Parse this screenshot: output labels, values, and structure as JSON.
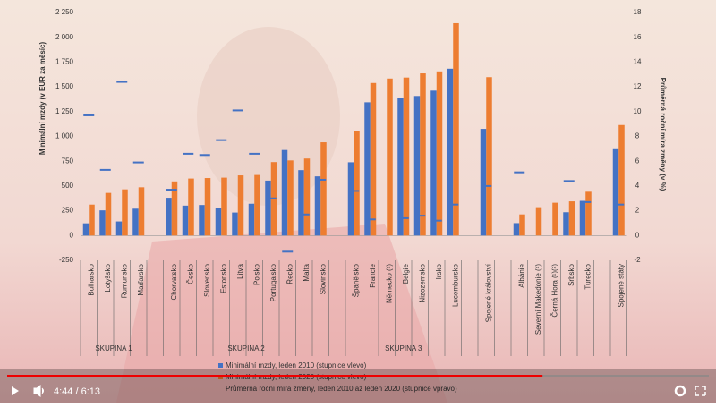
{
  "chart_data": {
    "type": "bar",
    "ylabel": "Minimální mzdy (v EUR za měsíc)",
    "y2label": "Průměrná roční míra změny (v %)",
    "categories": [
      "Bulharsko",
      "Lotyšsko",
      "Rumunsko",
      "Maďarsko",
      null,
      "Chorvatsko",
      "Česko",
      "Slovensko",
      "Estonsko",
      "Litva",
      "Polsko",
      "Portugalsko",
      "Řecko",
      "Malta",
      "Slovinsko",
      null,
      "Španělsko",
      "Francie",
      "Německo (¹)",
      "Belgie",
      "Nizozemsko",
      "Irsko",
      "Lucembursko",
      null,
      "Spojené království",
      null,
      "Albánie",
      "Severní Makedonie (¹)",
      "Černá Hora (¹)(²)",
      "Srbsko",
      "Turecko",
      null,
      "Spojené státy"
    ],
    "groups": [
      {
        "label": "SKUPINA 1",
        "from": 0,
        "to": 3
      },
      {
        "label": "SKUPINA 2",
        "from": 5,
        "to": 14
      },
      {
        "label": "SKUPINA 3",
        "from": 16,
        "to": 22
      }
    ],
    "series": [
      {
        "name": "Minimální mzdy, leden 2010 (stupnice vlevo)",
        "color": "#4472c4",
        "axis": "y",
        "marker": "bar",
        "values": [
          123,
          254,
          142,
          271,
          null,
          381,
          302,
          308,
          278,
          232,
          321,
          554,
          863,
          660,
          597,
          null,
          739,
          1344,
          null,
          1388,
          1408,
          1462,
          1683,
          null,
          1076,
          null,
          125,
          null,
          null,
          235,
          350,
          null,
          871
        ]
      },
      {
        "name": "Minimální mzdy, leden 2020 (stupnice vlevo)",
        "color": "#ed7d31",
        "axis": "y",
        "marker": "bar",
        "values": [
          312,
          430,
          466,
          487,
          null,
          546,
          575,
          580,
          584,
          607,
          611,
          741,
          758,
          777,
          941,
          null,
          1050,
          1539,
          1584,
          1594,
          1636,
          1656,
          2142,
          null,
          1598,
          null,
          213,
          286,
          331,
          345,
          442,
          null,
          1115
        ]
      },
      {
        "name": "Průměrná roční míra změny, leden 2010 až leden 2020 (stupnice vpravo)",
        "color": "#4472c4",
        "axis": "y2",
        "marker": "dash",
        "values": [
          9.7,
          5.3,
          12.4,
          5.9,
          null,
          3.7,
          6.6,
          6.5,
          7.7,
          10.1,
          6.6,
          3.0,
          -1.3,
          1.7,
          4.5,
          null,
          3.6,
          1.3,
          null,
          1.4,
          1.6,
          1.2,
          2.5,
          null,
          4.0,
          null,
          5.1,
          null,
          null,
          4.4,
          2.7,
          null,
          2.5
        ]
      }
    ],
    "ylim": [
      -250,
      2250
    ],
    "yticks": [
      {
        "value": 2250,
        "label": "2 250"
      },
      {
        "value": 2000,
        "label": "2 000"
      },
      {
        "value": 1750,
        "label": "1 750"
      },
      {
        "value": 1500,
        "label": "1 500"
      },
      {
        "value": 1250,
        "label": "1 250"
      },
      {
        "value": 1000,
        "label": "1 000"
      },
      750,
      500,
      250,
      0,
      -250
    ],
    "y2lim": [
      -2,
      18
    ],
    "y2ticks": [
      18,
      16,
      14,
      12,
      10,
      8,
      6,
      4,
      2,
      0,
      -2
    ]
  },
  "player": {
    "time": "4:44 / 6:13",
    "progress": 0.763
  }
}
